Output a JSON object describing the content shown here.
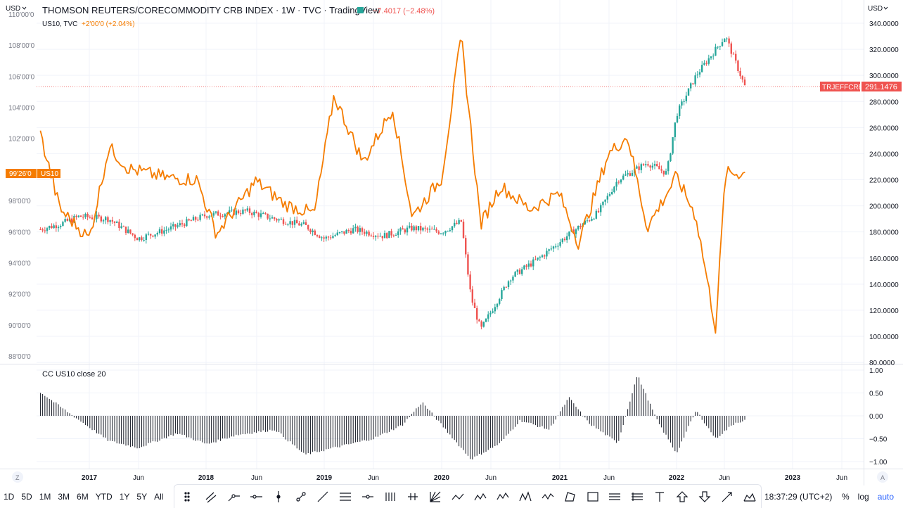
{
  "legend": {
    "main_title": "THOMSON REUTERS/CORECOMMODITY CRB INDEX · 1W · TVC · TradingView",
    "main_change": "−7.4017 (−2.48%)",
    "overlay_title": "US10, TVC",
    "overlay_change": "+2'00'0 (+2.04%)",
    "indicator": "CC US10 close 20"
  },
  "axes": {
    "left_currency": "USD",
    "right_currency": "USD",
    "left_ticks": [
      "110'00'0",
      "108'00'0",
      "106'00'0",
      "104'00'0",
      "102'00'0",
      "98'00'0",
      "96'00'0",
      "94'00'0",
      "92'00'0",
      "90'00'0",
      "88'00'0"
    ],
    "right_ticks": [
      "340.0000",
      "320.0000",
      "300.0000",
      "280.0000",
      "260.0000",
      "240.0000",
      "220.0000",
      "200.0000",
      "180.0000",
      "160.0000",
      "140.0000",
      "120.0000",
      "100.0000",
      "80.0000"
    ],
    "indicator_ticks": [
      "1.00",
      "0.50",
      "0.00",
      "−0.50",
      "−1.00"
    ],
    "time_ticks": [
      {
        "label": "2017",
        "major": true
      },
      {
        "label": "Jun",
        "major": false
      },
      {
        "label": "2018",
        "major": true
      },
      {
        "label": "Jun",
        "major": false
      },
      {
        "label": "2019",
        "major": true
      },
      {
        "label": "Jun",
        "major": false
      },
      {
        "label": "2020",
        "major": true
      },
      {
        "label": "Jun",
        "major": false
      },
      {
        "label": "2021",
        "major": true
      },
      {
        "label": "Jun",
        "major": false
      },
      {
        "label": "2022",
        "major": true
      },
      {
        "label": "Jun",
        "major": false
      },
      {
        "label": "2023",
        "major": true
      },
      {
        "label": "Jun",
        "major": false
      }
    ],
    "left_price_tag": "99'26'0",
    "left_symbol_tag": "US10",
    "right_symbol_tag": "TRJEFFCRB",
    "right_price_tag": "291.1476",
    "corner_z": "Z",
    "corner_a": "A"
  },
  "colors": {
    "up": "#26a69a",
    "down": "#ef5350",
    "overlay": "#f57c00",
    "indicator": "#131722",
    "grid": "#f0f3fa",
    "accent": "#2962ff"
  },
  "toolbar": {
    "timeframes": [
      "1D",
      "5D",
      "1M",
      "3M",
      "6M",
      "YTD",
      "1Y",
      "5Y",
      "All"
    ],
    "tools": [
      "grip-icon",
      "parallel-channel-icon",
      "ray-icon",
      "horizontal-ray-icon",
      "vertical-line-icon",
      "trend-line-icon",
      "trend-angle-icon",
      "fib-retracement-icon",
      "horizontal-line-icon",
      "fib-fan-icon",
      "gann-box-icon",
      "pitchfan-icon",
      "abcd-pattern-icon",
      "ac-pattern-icon",
      "ae-pattern-icon",
      "head-shoulders-icon",
      "wxy-pattern-icon",
      "polyline-icon",
      "rectangle-icon",
      "date-range-icon",
      "price-range-icon",
      "text-icon",
      "arrow-up-icon",
      "arrow-down-icon",
      "arrow-marker-icon",
      "pattern-icon"
    ],
    "clock": "18:37:29 (UTC+2)",
    "percent": "%",
    "log": "log",
    "auto": "auto"
  },
  "chart_data": [
    {
      "type": "candlestick",
      "name": "TRJEFFCRB",
      "y_axis": "right",
      "interval": "1W",
      "ylim": [
        80,
        340
      ],
      "last": 291.1476,
      "close_series": {
        "x": [
          "2016-08",
          "2016-10",
          "2016-12",
          "2017-03",
          "2017-06",
          "2017-09",
          "2018-01",
          "2018-05",
          "2018-08",
          "2018-11",
          "2019-01",
          "2019-04",
          "2019-07",
          "2019-10",
          "2020-01",
          "2020-03",
          "2020-04",
          "2020-05",
          "2020-08",
          "2020-11",
          "2021-02",
          "2021-05",
          "2021-07",
          "2021-10",
          "2021-12",
          "2022-01",
          "2022-03",
          "2022-06",
          "2022-08"
        ],
        "values": [
          182,
          186,
          192,
          190,
          175,
          182,
          193,
          196,
          190,
          185,
          175,
          182,
          177,
          183,
          180,
          188,
          130,
          105,
          145,
          160,
          178,
          195,
          220,
          233,
          225,
          270,
          300,
          330,
          291.1476
        ]
      }
    },
    {
      "type": "line",
      "name": "US10",
      "y_axis": "left",
      "yunit": "price (32nds)",
      "last": "99'26'0",
      "x": [
        "2016-08",
        "2016-10",
        "2017-01",
        "2017-03",
        "2017-05",
        "2017-09",
        "2017-12",
        "2018-02",
        "2018-06",
        "2018-09",
        "2018-12",
        "2019-02",
        "2019-05",
        "2019-08",
        "2019-10",
        "2020-01",
        "2020-03",
        "2020-05",
        "2020-07",
        "2020-10",
        "2021-01",
        "2021-03",
        "2021-06",
        "2021-08",
        "2021-10",
        "2022-01",
        "2022-03",
        "2022-05",
        "2022-06",
        "2022-08"
      ],
      "values": [
        102.3,
        97.5,
        95.6,
        101.5,
        100.1,
        99.5,
        99.4,
        95.9,
        99.3,
        97.8,
        97.2,
        104.8,
        100.5,
        104.0,
        97.0,
        99.5,
        108.6,
        96.5,
        99.0,
        97.5,
        98.5,
        95.3,
        101.0,
        102.2,
        96.3,
        99.6,
        97.0,
        89.8,
        99.8,
        99.8
      ]
    },
    {
      "type": "bar",
      "name": "CC US10 close 20",
      "ylim": [
        -1.0,
        1.0
      ],
      "x": [
        "2016-08",
        "2016-11",
        "2017-03",
        "2017-06",
        "2017-10",
        "2018-01",
        "2018-04",
        "2018-08",
        "2018-11",
        "2019-03",
        "2019-06",
        "2019-09",
        "2019-11",
        "2020-01",
        "2020-04",
        "2020-07",
        "2020-09",
        "2020-12",
        "2021-02",
        "2021-04",
        "2021-07",
        "2021-09",
        "2021-11",
        "2022-01",
        "2022-03",
        "2022-05",
        "2022-07",
        "2022-08"
      ],
      "values": [
        0.52,
        0.05,
        -0.55,
        -0.7,
        -0.38,
        -0.62,
        -0.42,
        -0.3,
        -0.85,
        -0.65,
        -0.5,
        -0.2,
        0.3,
        -0.2,
        -0.95,
        -0.6,
        -0.1,
        -0.3,
        0.4,
        -0.15,
        -0.6,
        0.9,
        -0.1,
        -0.82,
        0.12,
        -0.5,
        -0.15,
        -0.1
      ]
    }
  ]
}
